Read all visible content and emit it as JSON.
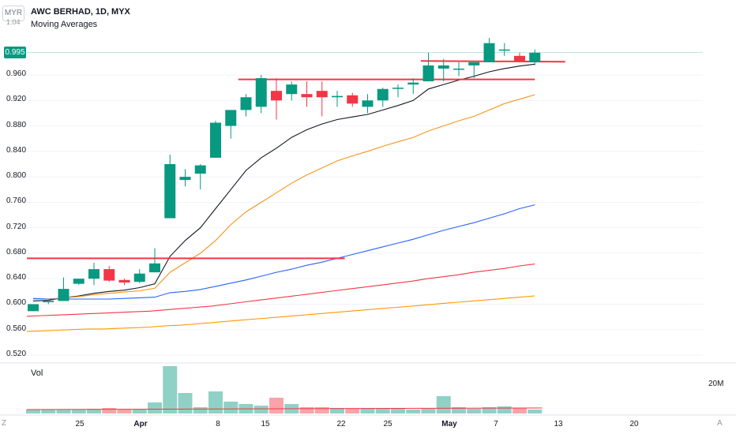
{
  "header": {
    "symbol_line": "AWC BERHAD, 1D, MYX",
    "indicator": "Moving Averages",
    "currency": "MYR"
  },
  "price_axis": {
    "top_label": "1.04",
    "ticks": [
      "0.960",
      "0.920",
      "0.880",
      "0.840",
      "0.800",
      "0.760",
      "0.720",
      "0.680",
      "0.640",
      "0.600",
      "0.560",
      "0.520"
    ],
    "current_price": "0.995"
  },
  "time_axis": {
    "ticks": [
      "25",
      "Apr",
      "8",
      "15",
      "22",
      "25",
      "May",
      "7",
      "13",
      "20"
    ],
    "left_corner": "Z",
    "right_corner": "A"
  },
  "volume": {
    "label": "Vol",
    "scale_label": "20M"
  },
  "colors": {
    "up": "#089981",
    "down": "#f23645",
    "ma_fast": "#131722",
    "ma_mid": "#f7931a",
    "ma_slow": "#2962ff",
    "ma_long1": "#f23645",
    "ma_long2": "#ff9800",
    "resistance": "#f23645"
  },
  "chart_data": {
    "type": "candlestick",
    "yrange": [
      0.52,
      1.04
    ],
    "candles": [
      {
        "o": 0.589,
        "h": 0.6,
        "l": 0.589,
        "c": 0.6
      },
      {
        "o": 0.603,
        "h": 0.608,
        "l": 0.6,
        "c": 0.605
      },
      {
        "o": 0.605,
        "h": 0.642,
        "l": 0.605,
        "c": 0.624
      },
      {
        "o": 0.632,
        "h": 0.64,
        "l": 0.63,
        "c": 0.64
      },
      {
        "o": 0.64,
        "h": 0.665,
        "l": 0.63,
        "c": 0.655
      },
      {
        "o": 0.655,
        "h": 0.66,
        "l": 0.635,
        "c": 0.637
      },
      {
        "o": 0.638,
        "h": 0.64,
        "l": 0.63,
        "c": 0.634
      },
      {
        "o": 0.635,
        "h": 0.655,
        "l": 0.633,
        "c": 0.648
      },
      {
        "o": 0.65,
        "h": 0.688,
        "l": 0.65,
        "c": 0.664
      },
      {
        "o": 0.735,
        "h": 0.835,
        "l": 0.735,
        "c": 0.82
      },
      {
        "o": 0.795,
        "h": 0.812,
        "l": 0.785,
        "c": 0.8
      },
      {
        "o": 0.805,
        "h": 0.82,
        "l": 0.78,
        "c": 0.818
      },
      {
        "o": 0.83,
        "h": 0.888,
        "l": 0.83,
        "c": 0.885
      },
      {
        "o": 0.88,
        "h": 0.905,
        "l": 0.86,
        "c": 0.905
      },
      {
        "o": 0.905,
        "h": 0.93,
        "l": 0.895,
        "c": 0.925
      },
      {
        "o": 0.91,
        "h": 0.96,
        "l": 0.9,
        "c": 0.955
      },
      {
        "o": 0.935,
        "h": 0.955,
        "l": 0.89,
        "c": 0.92
      },
      {
        "o": 0.93,
        "h": 0.95,
        "l": 0.92,
        "c": 0.945
      },
      {
        "o": 0.93,
        "h": 0.95,
        "l": 0.91,
        "c": 0.925
      },
      {
        "o": 0.935,
        "h": 0.95,
        "l": 0.895,
        "c": 0.925
      },
      {
        "o": 0.925,
        "h": 0.935,
        "l": 0.91,
        "c": 0.927
      },
      {
        "o": 0.928,
        "h": 0.932,
        "l": 0.91,
        "c": 0.915
      },
      {
        "o": 0.91,
        "h": 0.93,
        "l": 0.9,
        "c": 0.92
      },
      {
        "o": 0.92,
        "h": 0.94,
        "l": 0.91,
        "c": 0.938
      },
      {
        "o": 0.94,
        "h": 0.945,
        "l": 0.925,
        "c": 0.94
      },
      {
        "o": 0.945,
        "h": 0.955,
        "l": 0.93,
        "c": 0.948
      },
      {
        "o": 0.95,
        "h": 0.995,
        "l": 0.95,
        "c": 0.975
      },
      {
        "o": 0.97,
        "h": 0.985,
        "l": 0.95,
        "c": 0.975
      },
      {
        "o": 0.97,
        "h": 0.98,
        "l": 0.958,
        "c": 0.97
      },
      {
        "o": 0.975,
        "h": 0.98,
        "l": 0.955,
        "c": 0.98
      },
      {
        "o": 0.98,
        "h": 1.018,
        "l": 0.98,
        "c": 1.01
      },
      {
        "o": 1.0,
        "h": 1.01,
        "l": 0.99,
        "c": 1.0
      },
      {
        "o": 0.99,
        "h": 0.995,
        "l": 0.98,
        "c": 0.982
      },
      {
        "o": 0.98,
        "h": 1.0,
        "l": 0.975,
        "c": 0.995
      }
    ],
    "volume_millions": [
      2.5,
      2.5,
      2.5,
      2.5,
      3.0,
      3.5,
      2.5,
      2.5,
      7.0,
      30.0,
      13.0,
      4.0,
      14.0,
      7.5,
      6.0,
      5.0,
      10.0,
      6.0,
      4.0,
      4.0,
      3.5,
      3.0,
      3.5,
      3.5,
      3.5,
      2.5,
      3.0,
      11.0,
      4.0,
      3.0,
      4.0,
      4.5,
      3.5,
      2.5
    ],
    "ma_lines": [
      {
        "values": [
          0.605,
          0.606,
          0.61,
          0.613,
          0.617,
          0.62,
          0.622,
          0.626,
          0.632,
          0.675,
          0.7,
          0.72,
          0.75,
          0.78,
          0.81,
          0.83,
          0.845,
          0.862,
          0.874,
          0.883,
          0.89,
          0.894,
          0.898,
          0.905,
          0.912,
          0.92,
          0.938,
          0.945,
          0.952,
          0.958,
          0.965,
          0.97,
          0.974,
          0.977
        ]
      },
      {
        "values": [
          0.608,
          0.608,
          0.61,
          0.612,
          0.615,
          0.617,
          0.619,
          0.621,
          0.625,
          0.65,
          0.665,
          0.68,
          0.7,
          0.725,
          0.745,
          0.76,
          0.775,
          0.79,
          0.803,
          0.814,
          0.825,
          0.833,
          0.84,
          0.848,
          0.855,
          0.862,
          0.872,
          0.88,
          0.888,
          0.895,
          0.905,
          0.915,
          0.922,
          0.929
        ]
      },
      {
        "values": [
          0.609,
          0.608,
          0.608,
          0.608,
          0.608,
          0.608,
          0.609,
          0.61,
          0.611,
          0.618,
          0.62,
          0.623,
          0.628,
          0.633,
          0.638,
          0.644,
          0.65,
          0.655,
          0.661,
          0.666,
          0.672,
          0.678,
          0.684,
          0.69,
          0.696,
          0.702,
          0.709,
          0.716,
          0.722,
          0.728,
          0.735,
          0.742,
          0.75,
          0.756
        ]
      },
      {
        "values": [
          0.581,
          0.582,
          0.583,
          0.584,
          0.585,
          0.586,
          0.587,
          0.588,
          0.589,
          0.591,
          0.593,
          0.595,
          0.597,
          0.6,
          0.603,
          0.606,
          0.609,
          0.612,
          0.615,
          0.618,
          0.621,
          0.624,
          0.627,
          0.63,
          0.633,
          0.636,
          0.64,
          0.643,
          0.646,
          0.65,
          0.653,
          0.656,
          0.66,
          0.663
        ]
      },
      {
        "values": [
          0.557,
          0.558,
          0.559,
          0.56,
          0.561,
          0.561,
          0.562,
          0.563,
          0.564,
          0.566,
          0.567,
          0.569,
          0.571,
          0.573,
          0.575,
          0.577,
          0.579,
          0.581,
          0.583,
          0.585,
          0.587,
          0.589,
          0.591,
          0.593,
          0.595,
          0.597,
          0.599,
          0.601,
          0.603,
          0.605,
          0.607,
          0.609,
          0.611,
          0.613
        ]
      }
    ],
    "resistance_lines": [
      {
        "from_index": 0,
        "to_index": 20.5,
        "price": 0.672
      },
      {
        "from_index": 13.5,
        "to_index": 33,
        "price": 0.953
      },
      {
        "from_index": 25.5,
        "to_index": 35,
        "price": 0.982
      }
    ],
    "last_price_line": 0.995
  }
}
